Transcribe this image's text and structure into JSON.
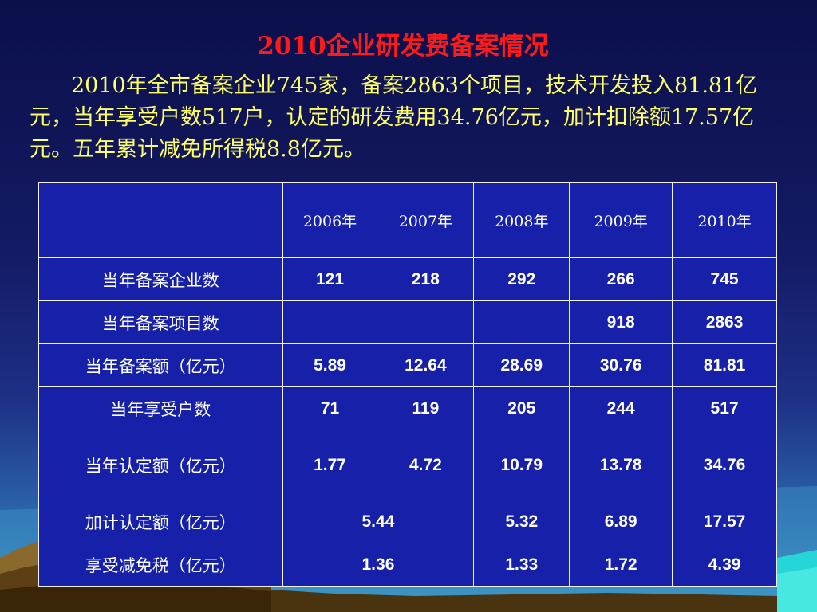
{
  "slide": {
    "title": "2010企业研发费备案情况",
    "paragraph": "2010年全市备案企业745家，备案2863个项目，技术开发投入81.81亿元，当年享受户数517户，认定的研发费用34.76亿元，加计扣除额17.57亿元。五年累计减免所得税8.8亿元。",
    "colors": {
      "title": "#ff1a1a",
      "paragraph": "#ffff66",
      "table_bg": "#1620a8",
      "table_text": "#ffffff"
    }
  },
  "table": {
    "corner": "",
    "years": [
      "2006年",
      "2007年",
      "2008年",
      "2009年",
      "2010年"
    ],
    "rows": {
      "companies": {
        "label": "当年备案企业数",
        "values": [
          "121",
          "218",
          "292",
          "266",
          "745"
        ]
      },
      "projects": {
        "label": "当年备案项目数",
        "values": [
          "",
          "",
          "",
          "918",
          "2863"
        ]
      },
      "amount": {
        "label": "当年备案额（亿元）",
        "values": [
          "5.89",
          "12.64",
          "28.69",
          "30.76",
          "81.81"
        ]
      },
      "households": {
        "label": "当年享受户数",
        "values": [
          "71",
          "119",
          "205",
          "244",
          "517"
        ]
      },
      "certified": {
        "label": "当年认定额（亿元）",
        "values": [
          "1.77",
          "4.72",
          "10.79",
          "13.78",
          "34.76"
        ]
      },
      "extra_deduction": {
        "label": "加计认定额（亿元）",
        "merged_2006_2007": "5.44",
        "values_2008_2010": [
          "5.32",
          "6.89",
          "17.57"
        ]
      },
      "tax_relief": {
        "label": "享受减免税（亿元）",
        "merged_2006_2007": "1.36",
        "values_2008_2010": [
          "1.33",
          "1.72",
          "4.39"
        ]
      }
    }
  }
}
